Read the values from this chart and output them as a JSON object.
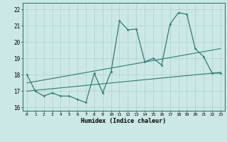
{
  "title": "",
  "xlabel": "Humidex (Indice chaleur)",
  "ylabel": "",
  "xlim": [
    -0.5,
    23.5
  ],
  "ylim": [
    15.8,
    22.4
  ],
  "yticks": [
    16,
    17,
    18,
    19,
    20,
    21,
    22
  ],
  "xticks": [
    0,
    1,
    2,
    3,
    4,
    5,
    6,
    7,
    8,
    9,
    10,
    11,
    12,
    13,
    14,
    15,
    16,
    17,
    18,
    19,
    20,
    21,
    22,
    23
  ],
  "bg_color": "#cce8e6",
  "line_color": "#2e7d72",
  "grid_color": "#b0d4d0",
  "line1_x": [
    0,
    1,
    2,
    3,
    4,
    5,
    6,
    7,
    8,
    9,
    10,
    11,
    12,
    13,
    14,
    15,
    16,
    17,
    18,
    19,
    20,
    21,
    22,
    23
  ],
  "line1_y": [
    18.0,
    17.0,
    16.7,
    16.9,
    16.7,
    16.7,
    16.5,
    16.3,
    18.1,
    16.9,
    18.2,
    21.3,
    20.75,
    20.8,
    18.8,
    19.0,
    18.6,
    21.1,
    21.8,
    21.7,
    19.6,
    19.1,
    18.1,
    18.1
  ],
  "line2_x": [
    0,
    23
  ],
  "line2_y": [
    17.0,
    18.15
  ],
  "line3_x": [
    0,
    23
  ],
  "line3_y": [
    17.5,
    19.6
  ]
}
